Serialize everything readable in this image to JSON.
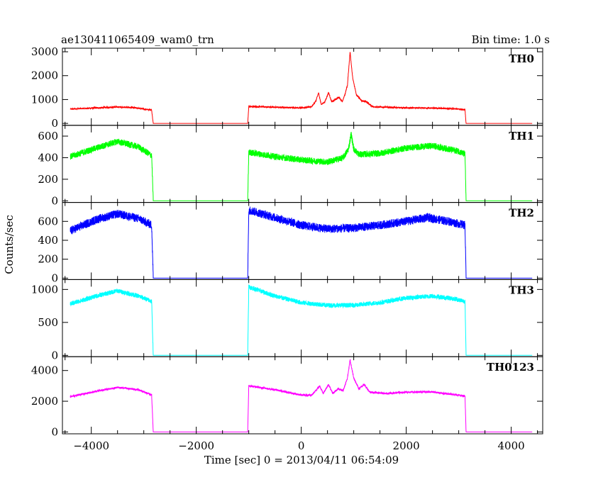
{
  "chart_data": {
    "type": "line",
    "title": "ae130411065409_wam0_trn",
    "bin_label": "Bin time: 1.0 s",
    "xlabel": "Time [sec] 0 = 2013/04/11 06:54:09",
    "ylabel": "Counts/sec",
    "xlim": [
      -4550,
      4600
    ],
    "x_ticks": [
      -4000,
      -2000,
      0,
      2000,
      4000
    ],
    "x_tick_labels": [
      "−4000",
      "−2000",
      "0",
      "2000",
      "4000"
    ],
    "grid": false,
    "legend": "none",
    "panels": [
      {
        "name": "TH0",
        "color": "#ff0000",
        "ylim": [
          -80,
          3150
        ],
        "y_ticks": [
          0,
          1000,
          2000,
          3000
        ],
        "y_tick_labels": [
          "0",
          "1000",
          "2000",
          "3000"
        ],
        "noise": 60,
        "points": [
          [
            -4400,
            600
          ],
          [
            -3900,
            650
          ],
          [
            -3500,
            690
          ],
          [
            -3200,
            660
          ],
          [
            -2850,
            560
          ],
          [
            -2820,
            0
          ],
          [
            -1020,
            0
          ],
          [
            -1000,
            710
          ],
          [
            -500,
            680
          ],
          [
            0,
            650
          ],
          [
            200,
            700
          ],
          [
            280,
            950
          ],
          [
            330,
            1280
          ],
          [
            380,
            800
          ],
          [
            450,
            900
          ],
          [
            520,
            1300
          ],
          [
            580,
            900
          ],
          [
            650,
            1000
          ],
          [
            720,
            1100
          ],
          [
            780,
            900
          ],
          [
            830,
            1200
          ],
          [
            880,
            1600
          ],
          [
            930,
            3000
          ],
          [
            980,
            1900
          ],
          [
            1050,
            1200
          ],
          [
            1150,
            950
          ],
          [
            1250,
            900
          ],
          [
            1350,
            700
          ],
          [
            1600,
            680
          ],
          [
            2000,
            650
          ],
          [
            2500,
            640
          ],
          [
            3000,
            600
          ],
          [
            3120,
            580
          ],
          [
            3140,
            0
          ],
          [
            4400,
            0
          ]
        ]
      },
      {
        "name": "TH1",
        "color": "#00ff00",
        "ylim": [
          -15,
          700
        ],
        "y_ticks": [
          0,
          200,
          400,
          600
        ],
        "y_tick_labels": [
          "0",
          "200",
          "400",
          "600"
        ],
        "noise": 60,
        "points": [
          [
            -4400,
            410
          ],
          [
            -3900,
            490
          ],
          [
            -3500,
            550
          ],
          [
            -3100,
            500
          ],
          [
            -2850,
            420
          ],
          [
            -2820,
            0
          ],
          [
            -1020,
            0
          ],
          [
            -1000,
            450
          ],
          [
            -500,
            410
          ],
          [
            0,
            380
          ],
          [
            500,
            360
          ],
          [
            800,
            400
          ],
          [
            900,
            480
          ],
          [
            950,
            620
          ],
          [
            1000,
            480
          ],
          [
            1100,
            430
          ],
          [
            1500,
            440
          ],
          [
            2000,
            490
          ],
          [
            2500,
            510
          ],
          [
            3000,
            460
          ],
          [
            3120,
            430
          ],
          [
            3140,
            0
          ],
          [
            4400,
            0
          ]
        ]
      },
      {
        "name": "TH2",
        "color": "#0000ff",
        "ylim": [
          -15,
          800
        ],
        "y_ticks": [
          0,
          200,
          400,
          600
        ],
        "y_tick_labels": [
          "0",
          "200",
          "400",
          "600"
        ],
        "noise": 90,
        "points": [
          [
            -4400,
            500
          ],
          [
            -3900,
            620
          ],
          [
            -3500,
            680
          ],
          [
            -3100,
            630
          ],
          [
            -2850,
            560
          ],
          [
            -2820,
            0
          ],
          [
            -1020,
            0
          ],
          [
            -1000,
            720
          ],
          [
            -500,
            640
          ],
          [
            0,
            560
          ],
          [
            500,
            520
          ],
          [
            1000,
            530
          ],
          [
            1500,
            560
          ],
          [
            2000,
            600
          ],
          [
            2400,
            640
          ],
          [
            2800,
            600
          ],
          [
            3120,
            560
          ],
          [
            3140,
            0
          ],
          [
            4400,
            0
          ]
        ]
      },
      {
        "name": "TH3",
        "color": "#00ffff",
        "ylim": [
          -20,
          1150
        ],
        "y_ticks": [
          0,
          500,
          1000
        ],
        "y_tick_labels": [
          "0",
          "500",
          "1000"
        ],
        "noise": 70,
        "points": [
          [
            -4400,
            780
          ],
          [
            -3900,
            900
          ],
          [
            -3500,
            980
          ],
          [
            -3100,
            900
          ],
          [
            -2850,
            820
          ],
          [
            -2820,
            0
          ],
          [
            -1020,
            0
          ],
          [
            -1000,
            1040
          ],
          [
            -500,
            900
          ],
          [
            0,
            800
          ],
          [
            500,
            760
          ],
          [
            1000,
            760
          ],
          [
            1500,
            800
          ],
          [
            2000,
            870
          ],
          [
            2500,
            900
          ],
          [
            2900,
            860
          ],
          [
            3120,
            820
          ],
          [
            3140,
            0
          ],
          [
            4400,
            0
          ]
        ]
      },
      {
        "name": "TH0123",
        "color": "#ff00ff",
        "ylim": [
          -120,
          4900
        ],
        "y_ticks": [
          0,
          2000,
          4000
        ],
        "y_tick_labels": [
          "0",
          "2000",
          "4000"
        ],
        "noise": 120,
        "points": [
          [
            -4400,
            2300
          ],
          [
            -3900,
            2650
          ],
          [
            -3500,
            2900
          ],
          [
            -3100,
            2750
          ],
          [
            -2850,
            2400
          ],
          [
            -2820,
            0
          ],
          [
            -1020,
            0
          ],
          [
            -1000,
            3000
          ],
          [
            -500,
            2750
          ],
          [
            0,
            2400
          ],
          [
            200,
            2400
          ],
          [
            280,
            2700
          ],
          [
            350,
            3000
          ],
          [
            420,
            2500
          ],
          [
            520,
            3100
          ],
          [
            600,
            2500
          ],
          [
            700,
            2800
          ],
          [
            800,
            2700
          ],
          [
            880,
            3500
          ],
          [
            930,
            4700
          ],
          [
            1000,
            3500
          ],
          [
            1100,
            2800
          ],
          [
            1200,
            3100
          ],
          [
            1300,
            2600
          ],
          [
            1600,
            2500
          ],
          [
            2000,
            2600
          ],
          [
            2500,
            2600
          ],
          [
            3000,
            2400
          ],
          [
            3120,
            2350
          ],
          [
            3140,
            0
          ],
          [
            4400,
            0
          ]
        ]
      }
    ]
  }
}
